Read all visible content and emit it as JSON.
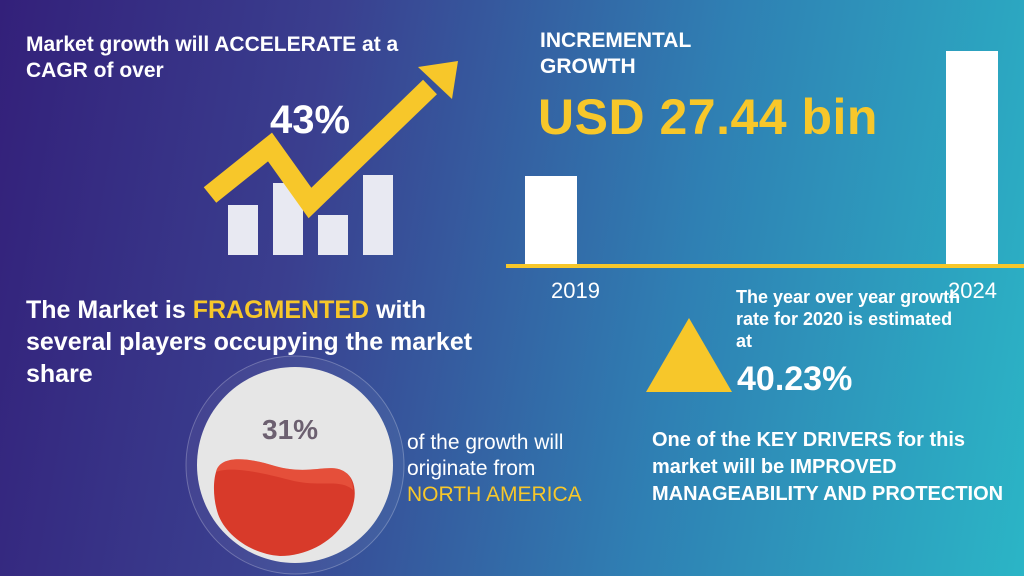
{
  "cagr": {
    "text": "Market growth will ACCELERATE at a CAGR of over",
    "value": "43%",
    "colors": {
      "arrow": "#f7c72a",
      "bars": "#e8e9f2"
    }
  },
  "incremental": {
    "label": "INCREMENTAL GROWTH",
    "value": "USD 27.44 bin"
  },
  "bar_chart": {
    "years": [
      "2019",
      "2024"
    ],
    "colors": {
      "bar": "#ffffff",
      "baseline": "#f7c72a"
    }
  },
  "fragmented": {
    "prefix": "The Market is ",
    "highlight": "FRAGMENTED",
    "suffix": " with several players occupying the market share"
  },
  "region": {
    "value": "31%",
    "text": "of the growth will originate from",
    "highlight": "NORTH AMERICA",
    "share": 0.31,
    "colors": {
      "fill": "#d83a2a",
      "base": "#e6e6e6"
    }
  },
  "yoy": {
    "text": "The year over year growth rate for 2020 is estimated at",
    "value": "40.23%",
    "colors": {
      "triangle": "#f7c72a"
    }
  },
  "drivers": {
    "text": "One of the KEY DRIVERS for this market will be IMPROVED MANAGEABILITY AND PROTECTION"
  }
}
